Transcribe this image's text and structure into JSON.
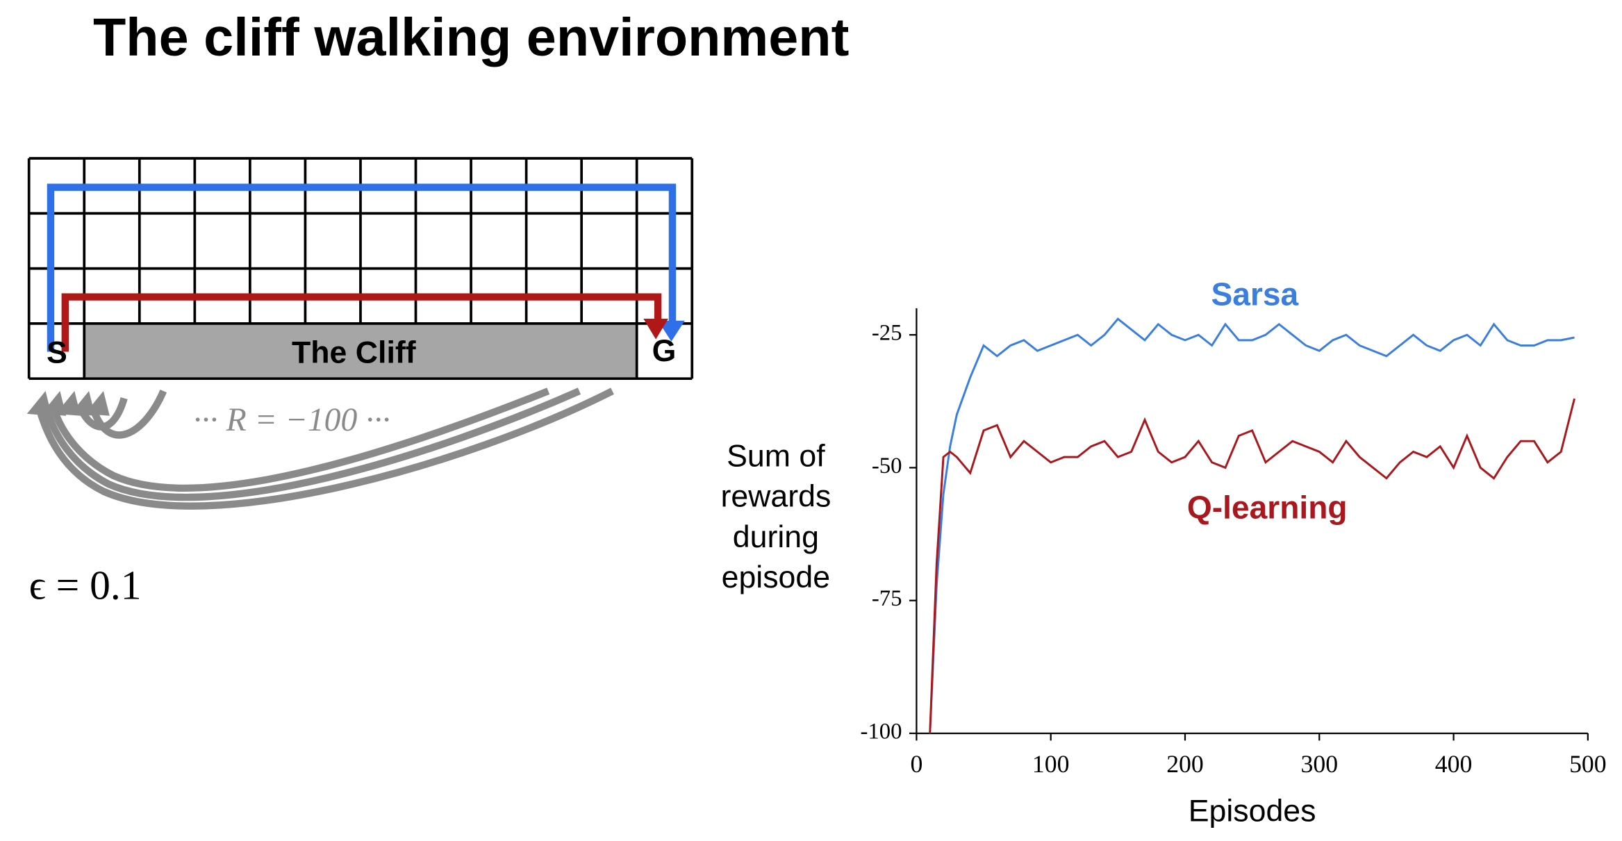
{
  "title": "The cliff walking environment",
  "diagram": {
    "start": "S",
    "goal": "G",
    "cliff": "The Cliff",
    "reward": "··· R = −100 ···",
    "epsilon": "ϵ = 0.1"
  },
  "chart_data": {
    "type": "line",
    "ylabel": [
      "Sum of",
      "rewards",
      "during",
      "episode"
    ],
    "xlabel": "Episodes",
    "x": [
      10,
      15,
      20,
      25,
      30,
      40,
      50,
      60,
      70,
      80,
      90,
      100,
      110,
      120,
      130,
      140,
      150,
      160,
      170,
      180,
      190,
      200,
      210,
      220,
      230,
      240,
      250,
      260,
      270,
      280,
      290,
      300,
      310,
      320,
      330,
      340,
      350,
      360,
      370,
      380,
      390,
      400,
      410,
      420,
      430,
      440,
      450,
      460,
      470,
      480,
      490
    ],
    "series": [
      {
        "name": "Sarsa",
        "color": "#3a7ee0",
        "values": [
          -100,
          -72,
          -55,
          -46,
          -40,
          -33,
          -27,
          -29,
          -27,
          -26,
          -28,
          -27,
          -26,
          -25,
          -27,
          -25,
          -22,
          -24,
          -26,
          -23,
          -25,
          -26,
          -25,
          -27,
          -23,
          -26,
          -26,
          -25,
          -23,
          -25,
          -27,
          -28,
          -26,
          -25,
          -27,
          -28,
          -29,
          -27,
          -25,
          -27,
          -28,
          -26,
          -25,
          -27,
          -23,
          -26,
          -27,
          -27,
          -26,
          -26,
          -25.5
        ]
      },
      {
        "name": "Q-learning",
        "color": "#a8181c",
        "values": [
          -100,
          -68,
          -48,
          -47,
          -48,
          -51,
          -43,
          -42,
          -48,
          -45,
          -47,
          -49,
          -48,
          -48,
          -46,
          -45,
          -48,
          -47,
          -41,
          -47,
          -49,
          -48,
          -45,
          -49,
          -50,
          -44,
          -43,
          -49,
          -47,
          -45,
          -46,
          -47,
          -49,
          -45,
          -48,
          -50,
          -52,
          -49,
          -47,
          -48,
          -46,
          -50,
          -44,
          -50,
          -52,
          -48,
          -45,
          -45,
          -49,
          -47,
          -37
        ]
      }
    ],
    "xlim": [
      0,
      500
    ],
    "ylim": [
      -100,
      -20
    ],
    "xticks": [
      0,
      100,
      200,
      300,
      400,
      500
    ],
    "yticks": [
      -100,
      -75,
      -50,
      -25
    ]
  }
}
